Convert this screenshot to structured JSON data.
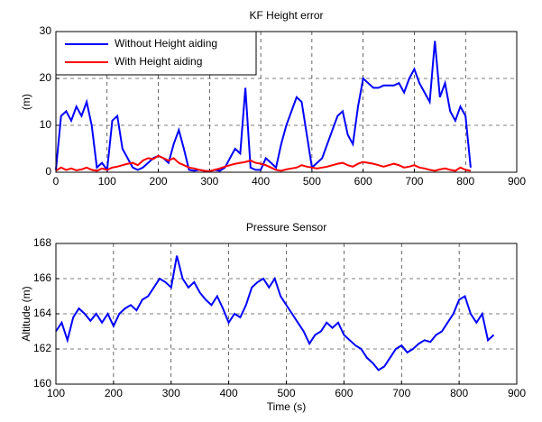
{
  "chart_data": [
    {
      "type": "line",
      "title": "KF Height error",
      "ylabel": "(m)",
      "x": [
        0,
        10,
        20,
        30,
        40,
        50,
        60,
        70,
        80,
        90,
        100,
        110,
        120,
        130,
        140,
        150,
        160,
        170,
        180,
        190,
        200,
        210,
        220,
        230,
        240,
        250,
        260,
        270,
        280,
        290,
        300,
        310,
        320,
        330,
        340,
        350,
        360,
        370,
        380,
        390,
        400,
        410,
        420,
        430,
        440,
        450,
        460,
        470,
        480,
        490,
        500,
        510,
        520,
        530,
        540,
        550,
        560,
        570,
        580,
        590,
        600,
        610,
        620,
        630,
        640,
        650,
        660,
        670,
        680,
        690,
        700,
        710,
        720,
        730,
        740,
        750,
        760,
        770,
        780,
        790,
        800,
        810
      ],
      "series": [
        {
          "name": "Without Height aiding",
          "color": "#0000ff",
          "values": [
            0.5,
            12,
            13,
            11,
            14,
            12,
            15,
            10,
            1,
            2,
            0.5,
            11,
            12,
            5,
            3,
            1,
            0.5,
            1,
            2,
            3,
            3.5,
            3,
            2,
            6,
            9,
            5,
            0.5,
            0.3,
            0.5,
            0.3,
            0.2,
            0.5,
            0.3,
            1,
            3,
            5,
            4,
            18,
            1,
            0.5,
            0.5,
            3,
            2,
            1,
            6,
            10,
            13,
            16,
            15,
            8,
            1,
            2,
            3,
            6,
            9,
            12,
            13,
            8,
            6,
            14,
            20,
            19,
            18,
            18,
            18.5,
            18.5,
            18.5,
            19,
            17,
            20,
            22,
            19,
            17,
            15,
            28,
            16,
            19,
            13,
            11,
            14,
            12,
            1
          ]
        },
        {
          "name": "With Height aiding",
          "color": "#ff0000",
          "values": [
            0.3,
            1,
            0.5,
            0.8,
            0.4,
            0.6,
            1,
            0.5,
            0.3,
            0.8,
            0.5,
            1,
            1.2,
            1.5,
            1.8,
            2,
            1.5,
            2.5,
            3,
            2.8,
            3.5,
            3,
            2.5,
            3,
            2,
            1.5,
            1,
            0.8,
            0.5,
            0.3,
            0.2,
            0.5,
            0.8,
            1.2,
            1.5,
            1.8,
            2,
            2.2,
            2.5,
            2,
            1.8,
            1.5,
            1,
            0.5,
            0.3,
            0.6,
            0.8,
            1,
            1.5,
            1.2,
            1,
            0.8,
            1,
            1.2,
            1.5,
            1.8,
            2,
            1.5,
            1.2,
            1.8,
            2.2,
            2,
            1.8,
            1.5,
            1.2,
            1.5,
            1.8,
            1.5,
            1,
            1.2,
            1.5,
            1,
            0.8,
            0.5,
            0.3,
            0.6,
            0.8,
            0.5,
            0.3,
            1,
            0.5,
            0.3
          ]
        }
      ],
      "xlim": [
        0,
        900
      ],
      "xticks": [
        0,
        100,
        200,
        300,
        400,
        500,
        600,
        700,
        800,
        900
      ],
      "ylim": [
        0,
        30
      ],
      "yticks": [
        0,
        10,
        20,
        30
      ],
      "grid": true,
      "legend": "upper left"
    },
    {
      "type": "line",
      "title": "Pressure Sensor",
      "xlabel": "Time (s)",
      "ylabel": "Altitude (m)",
      "x": [
        100,
        110,
        120,
        130,
        140,
        150,
        160,
        170,
        180,
        190,
        200,
        210,
        220,
        230,
        240,
        250,
        260,
        270,
        280,
        290,
        300,
        310,
        320,
        330,
        340,
        350,
        360,
        370,
        380,
        390,
        400,
        410,
        420,
        430,
        440,
        450,
        460,
        470,
        480,
        490,
        500,
        510,
        520,
        530,
        540,
        550,
        560,
        570,
        580,
        590,
        600,
        610,
        620,
        630,
        640,
        650,
        660,
        670,
        680,
        690,
        700,
        710,
        720,
        730,
        740,
        750,
        760,
        770,
        780,
        790,
        800,
        810,
        820,
        830,
        840,
        850,
        860
      ],
      "series": [
        {
          "color": "#0000ff",
          "values": [
            163,
            163.5,
            162.5,
            163.8,
            164.3,
            164,
            163.6,
            164,
            163.5,
            164,
            163.3,
            164,
            164.3,
            164.5,
            164.2,
            164.8,
            165,
            165.5,
            166,
            165.8,
            165.5,
            167.3,
            166,
            165.5,
            165.8,
            165.2,
            164.8,
            164.5,
            165,
            164.3,
            163.5,
            164,
            163.8,
            164.5,
            165.5,
            165.8,
            166,
            165.5,
            166,
            165,
            164.5,
            164,
            163.5,
            163,
            162.3,
            162.8,
            163,
            163.5,
            163.2,
            163.5,
            162.8,
            162.5,
            162.2,
            162,
            161.5,
            161.2,
            160.8,
            161,
            161.5,
            162,
            162.2,
            161.8,
            162,
            162.3,
            162.5,
            162.4,
            162.8,
            163,
            163.5,
            164,
            164.8,
            165,
            164,
            163.5,
            164,
            162.5,
            162.8
          ]
        }
      ],
      "xlim": [
        100,
        900
      ],
      "xticks": [
        100,
        200,
        300,
        400,
        500,
        600,
        700,
        800,
        900
      ],
      "ylim": [
        160,
        168
      ],
      "yticks": [
        160,
        162,
        164,
        166,
        168
      ],
      "grid": true
    }
  ]
}
